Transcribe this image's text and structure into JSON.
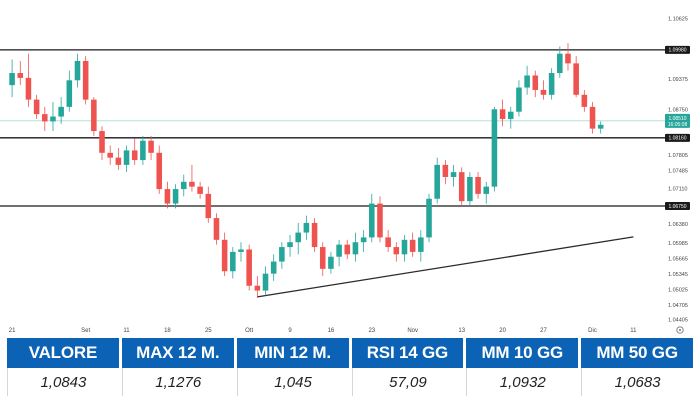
{
  "colors": {
    "up": "#26a69a",
    "down": "#ef5350",
    "header_bg": "#0c63b6",
    "header_text": "#ffffff",
    "current_price_line": "#26a69a"
  },
  "chart_data": {
    "type": "candlestick",
    "y_ticks": [
      "1.10625",
      "1.09980",
      "1.09375",
      "1.08750",
      "1.08160",
      "1.07805",
      "1.07485",
      "1.07110",
      "1.06750",
      "1.06380",
      "1.05985",
      "1.05665",
      "1.05345",
      "1.05025",
      "1.04705",
      "1.04405"
    ],
    "ylim": [
      1.0435,
      1.1068
    ],
    "x_ticks": [
      "21",
      "Set",
      "11",
      "18",
      "25",
      "Ott",
      "9",
      "16",
      "23",
      "Nov",
      "13",
      "20",
      "27",
      "Dic",
      "11"
    ],
    "x_tick_index": [
      0,
      9,
      14,
      19,
      24,
      29,
      34,
      39,
      44,
      49,
      55,
      60,
      65,
      71,
      76
    ],
    "num_slots": 80,
    "horizontal_levels": [
      {
        "value": 1.0998,
        "label": "1.09980"
      },
      {
        "value": 1.0816,
        "label": "1.08160"
      },
      {
        "value": 1.0675,
        "label": "1.06750"
      }
    ],
    "current_price": {
      "value": 1.0851,
      "label": "1.08510",
      "countdown": "16:05:08"
    },
    "trendline": {
      "from": {
        "index": 30,
        "value": 1.0487
      },
      "to": {
        "index": 76,
        "value": 1.0611
      }
    },
    "candles": [
      {
        "o": 1.0925,
        "h": 1.0978,
        "l": 1.09,
        "c": 1.095
      },
      {
        "o": 1.095,
        "h": 1.0975,
        "l": 1.0925,
        "c": 1.094
      },
      {
        "o": 1.094,
        "h": 1.099,
        "l": 1.088,
        "c": 1.0895
      },
      {
        "o": 1.0895,
        "h": 1.0905,
        "l": 1.0855,
        "c": 1.0865
      },
      {
        "o": 1.0865,
        "h": 1.088,
        "l": 1.083,
        "c": 1.085
      },
      {
        "o": 1.085,
        "h": 1.089,
        "l": 1.083,
        "c": 1.086
      },
      {
        "o": 1.086,
        "h": 1.09,
        "l": 1.0845,
        "c": 1.088
      },
      {
        "o": 1.088,
        "h": 1.0955,
        "l": 1.087,
        "c": 1.0935
      },
      {
        "o": 1.0935,
        "h": 1.099,
        "l": 1.092,
        "c": 1.0975
      },
      {
        "o": 1.0975,
        "h": 1.0985,
        "l": 1.0885,
        "c": 1.0895
      },
      {
        "o": 1.0895,
        "h": 1.09,
        "l": 1.082,
        "c": 1.083
      },
      {
        "o": 1.083,
        "h": 1.084,
        "l": 1.077,
        "c": 1.0785
      },
      {
        "o": 1.0785,
        "h": 1.08,
        "l": 1.076,
        "c": 1.0775
      },
      {
        "o": 1.0775,
        "h": 1.0795,
        "l": 1.075,
        "c": 1.076
      },
      {
        "o": 1.076,
        "h": 1.08,
        "l": 1.0745,
        "c": 1.079
      },
      {
        "o": 1.079,
        "h": 1.0815,
        "l": 1.076,
        "c": 1.077
      },
      {
        "o": 1.077,
        "h": 1.082,
        "l": 1.076,
        "c": 1.081
      },
      {
        "o": 1.081,
        "h": 1.082,
        "l": 1.077,
        "c": 1.0785
      },
      {
        "o": 1.0785,
        "h": 1.08,
        "l": 1.07,
        "c": 1.071
      },
      {
        "o": 1.071,
        "h": 1.0725,
        "l": 1.067,
        "c": 1.068
      },
      {
        "o": 1.068,
        "h": 1.072,
        "l": 1.067,
        "c": 1.071
      },
      {
        "o": 1.071,
        "h": 1.074,
        "l": 1.0695,
        "c": 1.0725
      },
      {
        "o": 1.0725,
        "h": 1.076,
        "l": 1.0705,
        "c": 1.0715
      },
      {
        "o": 1.0715,
        "h": 1.0725,
        "l": 1.069,
        "c": 1.07
      },
      {
        "o": 1.07,
        "h": 1.0715,
        "l": 1.064,
        "c": 1.065
      },
      {
        "o": 1.065,
        "h": 1.066,
        "l": 1.0595,
        "c": 1.0605
      },
      {
        "o": 1.0605,
        "h": 1.062,
        "l": 1.053,
        "c": 1.054
      },
      {
        "o": 1.054,
        "h": 1.059,
        "l": 1.0525,
        "c": 1.058
      },
      {
        "o": 1.058,
        "h": 1.06,
        "l": 1.056,
        "c": 1.0585
      },
      {
        "o": 1.0585,
        "h": 1.0595,
        "l": 1.05,
        "c": 1.051
      },
      {
        "o": 1.051,
        "h": 1.053,
        "l": 1.0485,
        "c": 1.05
      },
      {
        "o": 1.05,
        "h": 1.055,
        "l": 1.049,
        "c": 1.0535
      },
      {
        "o": 1.0535,
        "h": 1.0575,
        "l": 1.052,
        "c": 1.056
      },
      {
        "o": 1.056,
        "h": 1.06,
        "l": 1.0545,
        "c": 1.059
      },
      {
        "o": 1.059,
        "h": 1.0615,
        "l": 1.057,
        "c": 1.06
      },
      {
        "o": 1.06,
        "h": 1.064,
        "l": 1.0575,
        "c": 1.062
      },
      {
        "o": 1.062,
        "h": 1.0655,
        "l": 1.0605,
        "c": 1.064
      },
      {
        "o": 1.064,
        "h": 1.065,
        "l": 1.058,
        "c": 1.059
      },
      {
        "o": 1.059,
        "h": 1.06,
        "l": 1.053,
        "c": 1.0545
      },
      {
        "o": 1.0545,
        "h": 1.058,
        "l": 1.0535,
        "c": 1.057
      },
      {
        "o": 1.057,
        "h": 1.0605,
        "l": 1.055,
        "c": 1.0595
      },
      {
        "o": 1.0595,
        "h": 1.0605,
        "l": 1.0565,
        "c": 1.0575
      },
      {
        "o": 1.0575,
        "h": 1.062,
        "l": 1.056,
        "c": 1.06
      },
      {
        "o": 1.06,
        "h": 1.0625,
        "l": 1.058,
        "c": 1.061
      },
      {
        "o": 1.061,
        "h": 1.07,
        "l": 1.06,
        "c": 1.068
      },
      {
        "o": 1.068,
        "h": 1.0695,
        "l": 1.06,
        "c": 1.061
      },
      {
        "o": 1.061,
        "h": 1.0625,
        "l": 1.058,
        "c": 1.059
      },
      {
        "o": 1.059,
        "h": 1.06,
        "l": 1.056,
        "c": 1.0575
      },
      {
        "o": 1.0575,
        "h": 1.0615,
        "l": 1.056,
        "c": 1.0605
      },
      {
        "o": 1.0605,
        "h": 1.062,
        "l": 1.057,
        "c": 1.058
      },
      {
        "o": 1.058,
        "h": 1.0625,
        "l": 1.056,
        "c": 1.061
      },
      {
        "o": 1.061,
        "h": 1.07,
        "l": 1.06,
        "c": 1.069
      },
      {
        "o": 1.069,
        "h": 1.0775,
        "l": 1.068,
        "c": 1.076
      },
      {
        "o": 1.076,
        "h": 1.077,
        "l": 1.072,
        "c": 1.0735
      },
      {
        "o": 1.0735,
        "h": 1.076,
        "l": 1.0715,
        "c": 1.0745
      },
      {
        "o": 1.0745,
        "h": 1.0755,
        "l": 1.0675,
        "c": 1.0685
      },
      {
        "o": 1.0685,
        "h": 1.0745,
        "l": 1.0675,
        "c": 1.0735
      },
      {
        "o": 1.0735,
        "h": 1.0745,
        "l": 1.069,
        "c": 1.07
      },
      {
        "o": 1.07,
        "h": 1.0725,
        "l": 1.068,
        "c": 1.0715
      },
      {
        "o": 1.0715,
        "h": 1.088,
        "l": 1.0705,
        "c": 1.0875
      },
      {
        "o": 1.0875,
        "h": 1.0895,
        "l": 1.084,
        "c": 1.0855
      },
      {
        "o": 1.0855,
        "h": 1.088,
        "l": 1.0835,
        "c": 1.087
      },
      {
        "o": 1.087,
        "h": 1.0935,
        "l": 1.086,
        "c": 1.092
      },
      {
        "o": 1.092,
        "h": 1.0965,
        "l": 1.0905,
        "c": 1.0945
      },
      {
        "o": 1.0945,
        "h": 1.0955,
        "l": 1.09,
        "c": 1.0915
      },
      {
        "o": 1.0915,
        "h": 1.0935,
        "l": 1.0895,
        "c": 1.0905
      },
      {
        "o": 1.0905,
        "h": 1.096,
        "l": 1.0895,
        "c": 1.095
      },
      {
        "o": 1.095,
        "h": 1.1005,
        "l": 1.094,
        "c": 1.099
      },
      {
        "o": 1.099,
        "h": 1.1012,
        "l": 1.0955,
        "c": 1.097
      },
      {
        "o": 1.097,
        "h": 1.0985,
        "l": 1.09,
        "c": 1.0905
      },
      {
        "o": 1.0905,
        "h": 1.0915,
        "l": 1.087,
        "c": 1.088
      },
      {
        "o": 1.088,
        "h": 1.089,
        "l": 1.0825,
        "c": 1.0835
      },
      {
        "o": 1.0835,
        "h": 1.085,
        "l": 1.0825,
        "c": 1.0843
      }
    ]
  },
  "stats": [
    {
      "label": "VALORE",
      "value": "1,0843"
    },
    {
      "label": "MAX 12 M.",
      "value": "1,1276"
    },
    {
      "label": "MIN 12 M.",
      "value": "1,045"
    },
    {
      "label": "RSI 14 GG",
      "value": "57,09"
    },
    {
      "label": "MM 10 GG",
      "value": "1,0932"
    },
    {
      "label": "MM 50 GG",
      "value": "1,0683"
    }
  ]
}
